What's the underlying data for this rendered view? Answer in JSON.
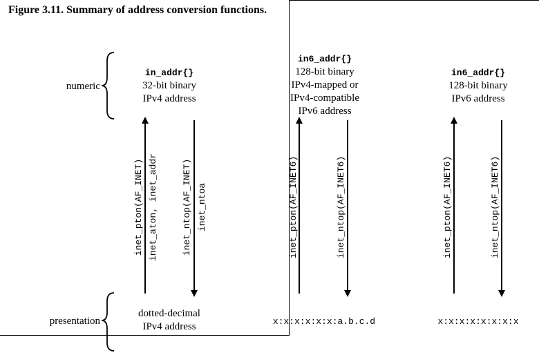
{
  "figure_title": "Figure 3.11. Summary of address conversion functions.",
  "labels": {
    "numeric": "numeric",
    "presentation": "presentation"
  },
  "columns": [
    {
      "struct": "in_addr{}",
      "desc": [
        "32-bit binary",
        "IPv4 address"
      ],
      "up_func": [
        "inet_pton(AF_INET)",
        "inet_aton, inet_addr"
      ],
      "down_func": [
        "inet_ntop(AF_INET)",
        "inet_ntoa"
      ],
      "presentation": [
        "dotted-decimal",
        "IPv4 address"
      ]
    },
    {
      "struct": "in6_addr{}",
      "desc": [
        "128-bit binary",
        "IPv4-mapped or",
        "IPv4-compatible",
        "IPv6 address"
      ],
      "up_func": [
        "inet_pton(AF_INET6)"
      ],
      "down_func": [
        "inet_ntop(AF_INET6)"
      ],
      "presentation": [
        "x:x:x:x:x:x:a.b.c.d"
      ]
    },
    {
      "struct": "in6_addr{}",
      "desc": [
        "128-bit binary",
        "IPv6 address"
      ],
      "up_func": [
        "inet_pton(AF_INET6)"
      ],
      "down_func": [
        "inet_ntop(AF_INET6)"
      ],
      "presentation": [
        "x:x:x:x:x:x:x:x"
      ]
    }
  ]
}
